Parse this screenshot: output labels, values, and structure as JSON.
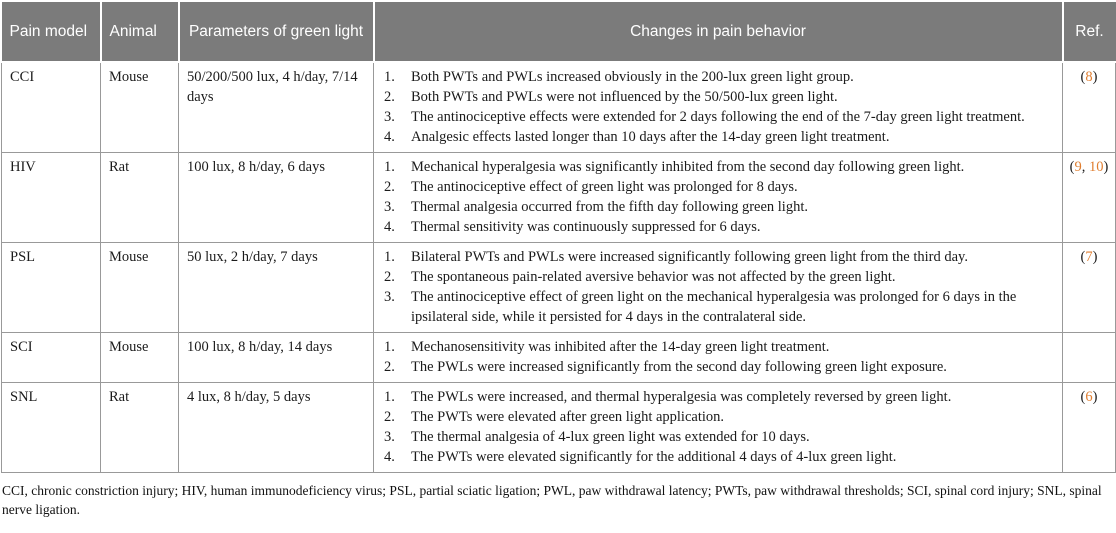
{
  "table": {
    "headers": [
      "Pain model",
      "Animal",
      "Parameters of green light",
      "Changes in pain behavior",
      "Ref."
    ],
    "rows": [
      {
        "model": "CCI",
        "animal": "Mouse",
        "parameters": "50/200/500 lux, 4 h/day, 7/14 days",
        "changes": [
          "Both PWTs and PWLs increased obviously in the 200-lux green light group.",
          "Both PWTs and PWLs were not influenced by the 50/500-lux green light.",
          "The antinociceptive effects were extended for 2 days following the end of the 7-day green light treatment.",
          "Analgesic effects lasted longer than 10 days after the 14-day green light treatment."
        ],
        "ref": [
          {
            "text": "(",
            "orange": false
          },
          {
            "text": "8",
            "orange": true
          },
          {
            "text": ")",
            "orange": false
          }
        ]
      },
      {
        "model": "HIV",
        "animal": "Rat",
        "parameters": "100 lux, 8 h/day, 6 days",
        "changes": [
          "Mechanical hyperalgesia was significantly inhibited from the second day following green light.",
          "The antinociceptive effect of green light was prolonged for 8 days.",
          "Thermal analgesia occurred from the fifth day following green light.",
          "Thermal sensitivity was continuously suppressed for 6 days."
        ],
        "ref": [
          {
            "text": "(",
            "orange": false
          },
          {
            "text": "9",
            "orange": true
          },
          {
            "text": ", ",
            "orange": false
          },
          {
            "text": "10",
            "orange": true
          },
          {
            "text": ")",
            "orange": false
          }
        ]
      },
      {
        "model": "PSL",
        "animal": "Mouse",
        "parameters": "50 lux, 2 h/day, 7 days",
        "changes": [
          "Bilateral PWTs and PWLs were increased significantly following green light from the third day.",
          "The spontaneous pain-related aversive behavior was not affected by the green light.",
          "The antinociceptive effect of green light on the mechanical hyperalgesia was prolonged for 6 days in the ipsilateral side, while it persisted for 4 days in the contralateral side."
        ],
        "ref": [
          {
            "text": "(",
            "orange": false
          },
          {
            "text": "7",
            "orange": true
          },
          {
            "text": ")",
            "orange": false
          }
        ]
      },
      {
        "model": "SCI",
        "animal": "Mouse",
        "parameters": "100 lux, 8 h/day, 14 days",
        "changes": [
          "Mechanosensitivity was inhibited after the 14-day green light treatment.",
          "The PWLs were increased significantly from the second day following green light exposure."
        ],
        "ref": []
      },
      {
        "model": "SNL",
        "animal": "Rat",
        "parameters": "4 lux, 8 h/day, 5 days",
        "changes": [
          "The PWLs were increased, and thermal hyperalgesia was completely reversed by green light.",
          "The PWTs were elevated after green light application.",
          "The thermal analgesia of 4-lux green light was extended for 10 days.",
          "The PWTs were elevated significantly for the additional 4 days of 4-lux green light."
        ],
        "ref": [
          {
            "text": "(",
            "orange": false
          },
          {
            "text": "6",
            "orange": true
          },
          {
            "text": ")",
            "orange": false
          }
        ]
      }
    ]
  },
  "footnote": "CCI, chronic constriction injury; HIV, human immunodeficiency virus; PSL, partial sciatic ligation; PWL, paw withdrawal latency; PWTs, paw withdrawal thresholds; SCI, spinal cord injury; SNL, spinal nerve ligation.",
  "colors": {
    "header_bg": "#7b7b7b",
    "header_text": "#ffffff",
    "body_text": "#1b1b1b",
    "border": "#999999",
    "ref_orange": "#e07e30"
  }
}
